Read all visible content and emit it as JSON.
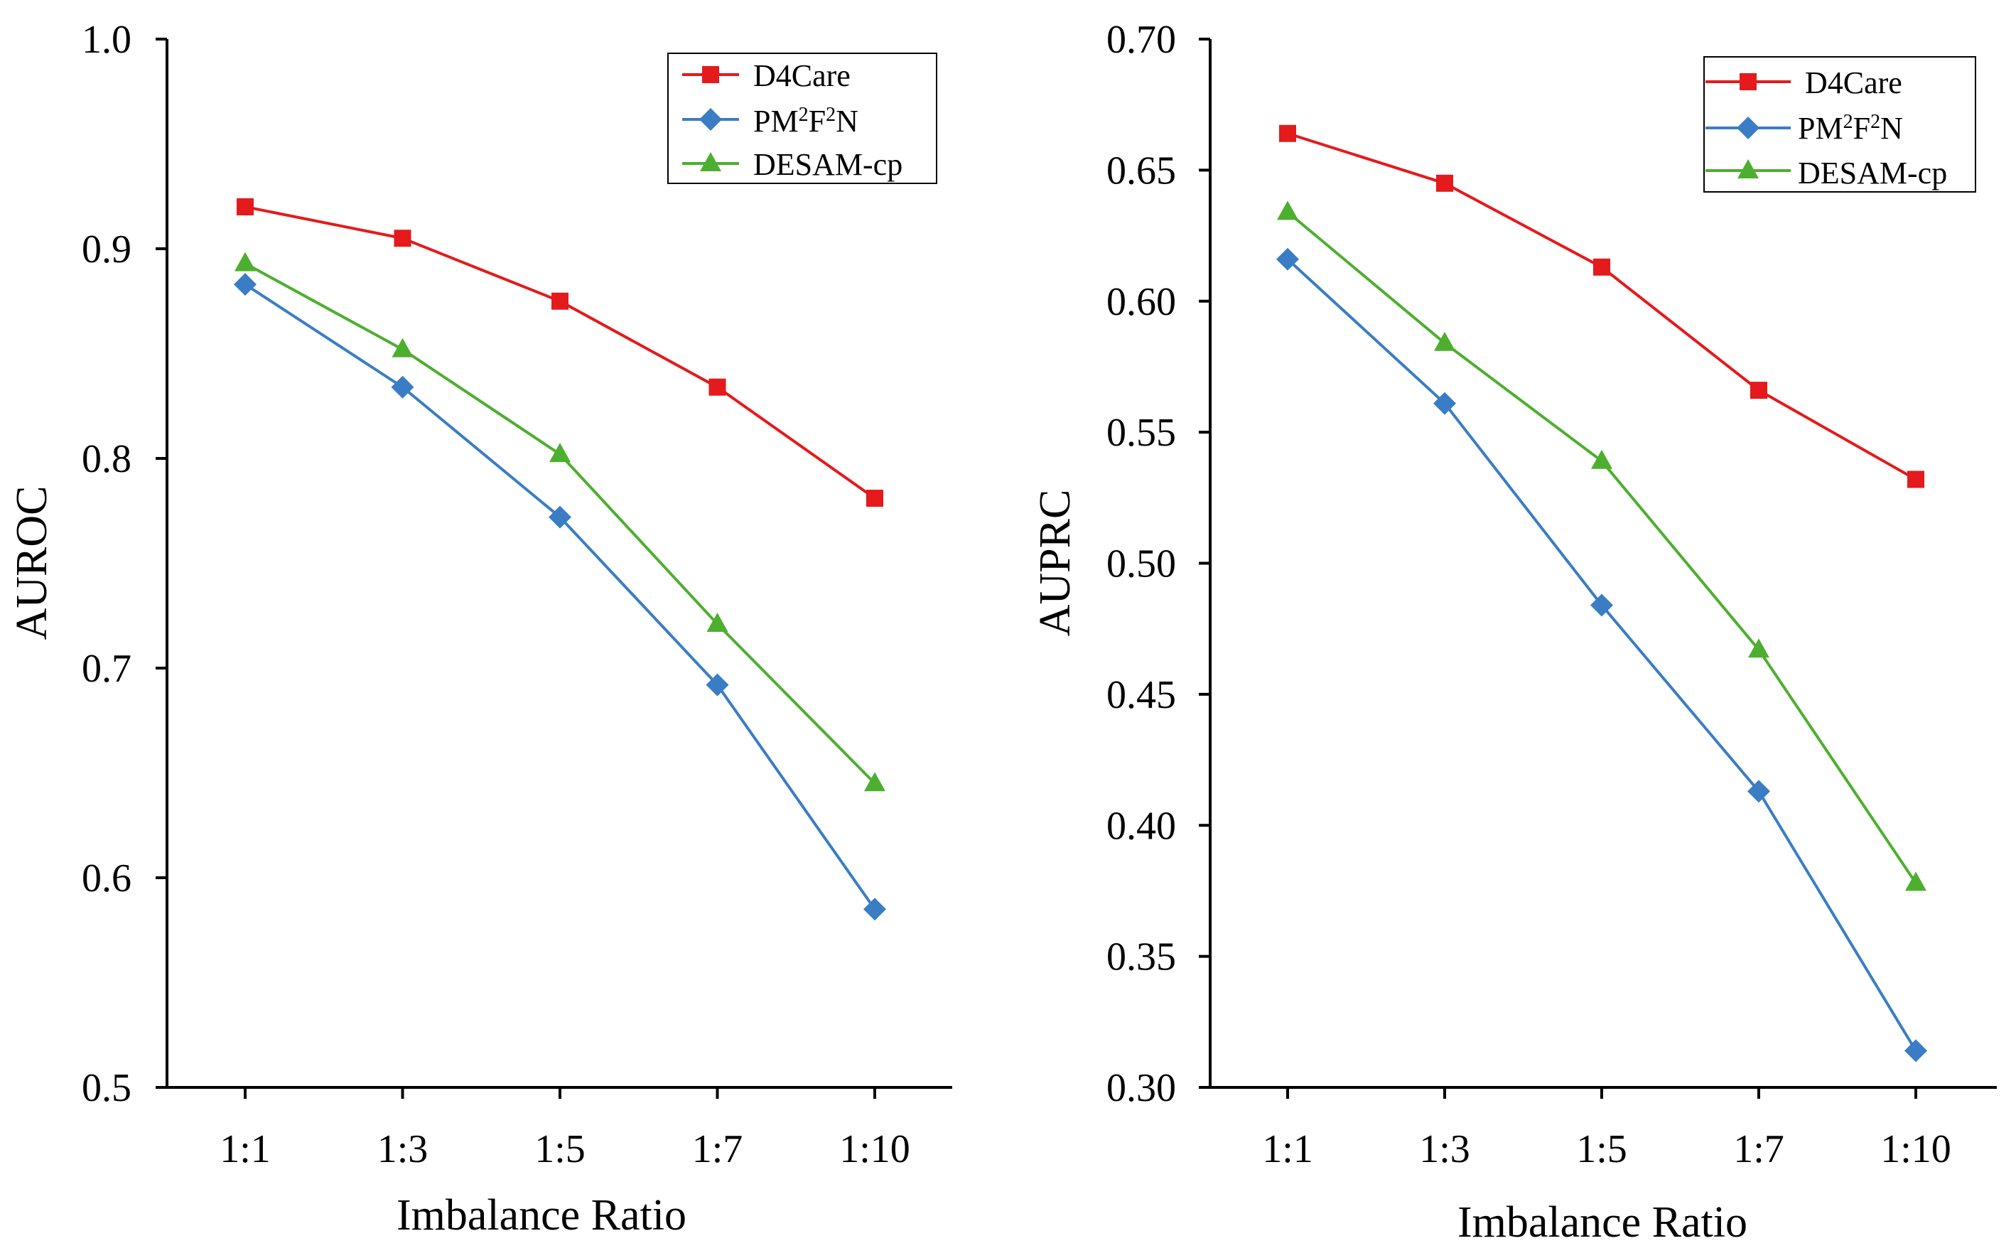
{
  "colors": {
    "D4Care": "#e41a1c",
    "PM2F2N": "#3a7dc4",
    "DESAM-cp": "#4daf2f"
  },
  "chart_data": [
    {
      "type": "line",
      "id": "auroc",
      "title": "",
      "xlabel": "Imbalance Ratio",
      "ylabel": "AUROC",
      "categories": [
        "1:1",
        "1:3",
        "1:5",
        "1:7",
        "1:10"
      ],
      "ylim": [
        0.5,
        1.0
      ],
      "yticks": [
        "0.5",
        "0.6",
        "0.7",
        "0.8",
        "0.9",
        "1.0"
      ],
      "ytick_values": [
        0.5,
        0.6,
        0.7,
        0.8,
        0.9,
        1.0
      ],
      "legend_position": "top-right",
      "series": [
        {
          "key": "D4Care",
          "name": "D4Care",
          "marker": "square",
          "values": [
            0.92,
            0.905,
            0.875,
            0.834,
            0.781
          ]
        },
        {
          "key": "PM2F2N",
          "name_prefix": "PM",
          "name_sup1": "2",
          "name_mid": "F",
          "name_sup2": "2",
          "name_suffix": "N",
          "marker": "diamond",
          "values": [
            0.883,
            0.834,
            0.772,
            0.692,
            0.585
          ]
        },
        {
          "key": "DESAM-cp",
          "name": "DESAM-cp",
          "marker": "triangle",
          "values": [
            0.893,
            0.852,
            0.802,
            0.721,
            0.645
          ]
        }
      ]
    },
    {
      "type": "line",
      "id": "auprc",
      "title": "",
      "xlabel": "Imbalance Ratio",
      "ylabel": "AUPRC",
      "categories": [
        "1:1",
        "1:3",
        "1:5",
        "1:7",
        "1:10"
      ],
      "ylim": [
        0.3,
        0.7
      ],
      "yticks": [
        "0.30",
        "0.35",
        "0.40",
        "0.45",
        "0.50",
        "0.55",
        "0.60",
        "0.65",
        "0.70"
      ],
      "ytick_values": [
        0.3,
        0.35,
        0.4,
        0.45,
        0.5,
        0.55,
        0.6,
        0.65,
        0.7
      ],
      "legend_position": "top-right",
      "series": [
        {
          "key": "D4Care",
          "name": "D4Care",
          "marker": "square",
          "values": [
            0.664,
            0.645,
            0.613,
            0.566,
            0.532
          ]
        },
        {
          "key": "PM2F2N",
          "name_prefix": "PM",
          "name_sup1": "2",
          "name_mid": "F",
          "name_sup2": "2",
          "name_suffix": "N",
          "marker": "diamond",
          "values": [
            0.616,
            0.561,
            0.484,
            0.413,
            0.314
          ]
        },
        {
          "key": "DESAM-cp",
          "name": "DESAM-cp",
          "marker": "triangle",
          "values": [
            0.634,
            0.584,
            0.539,
            0.467,
            0.378
          ]
        }
      ]
    }
  ]
}
